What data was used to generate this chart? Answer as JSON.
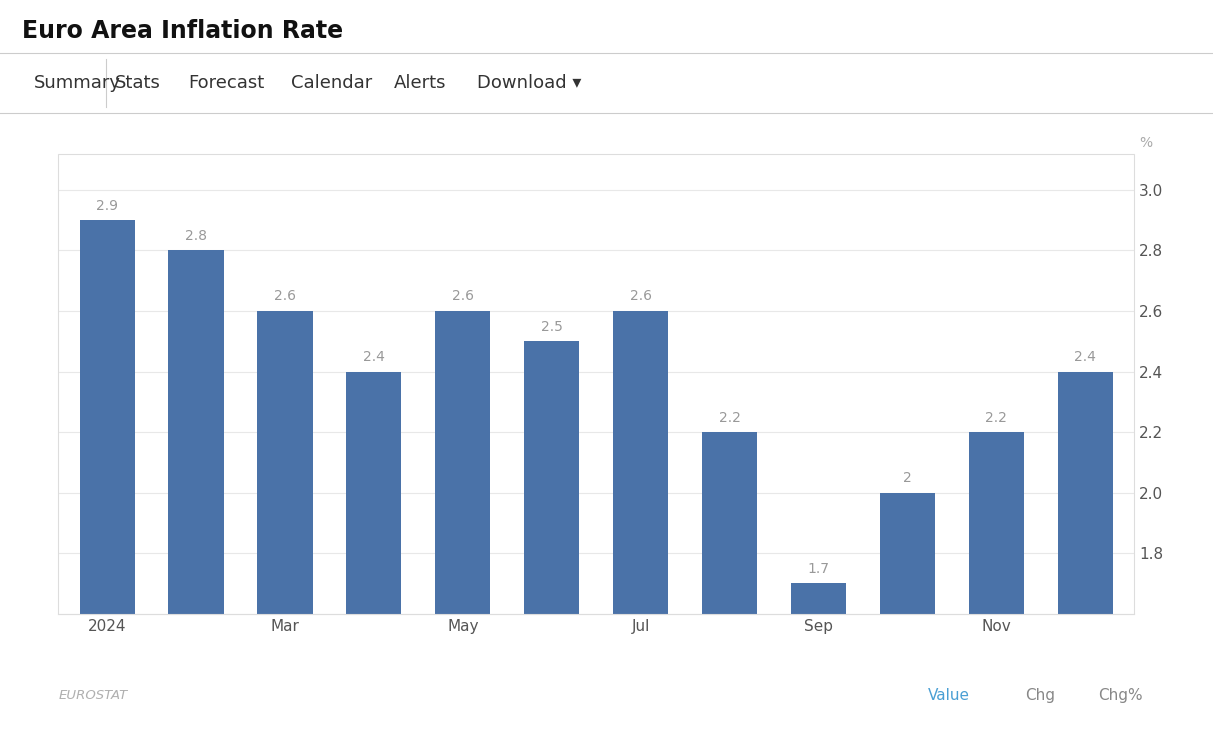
{
  "title": "Euro Area Inflation Rate",
  "nav_items": [
    "Summary",
    "Stats",
    "Forecast",
    "Calendar",
    "Alerts",
    "Download ▾"
  ],
  "x_labels": [
    "2024",
    "",
    "Mar",
    "",
    "May",
    "",
    "Jul",
    "",
    "Sep",
    "",
    "Nov",
    ""
  ],
  "values": [
    2.9,
    2.8,
    2.6,
    2.4,
    2.6,
    2.5,
    2.6,
    2.2,
    1.7,
    2.0,
    2.2,
    2.4
  ],
  "value_labels": [
    "2.9",
    "2.8",
    "2.6",
    "2.4",
    "2.6",
    "2.5",
    "2.6",
    "2.2",
    "1.7",
    "2",
    "2.2",
    "2.4"
  ],
  "bar_color": "#4a72a8",
  "ylim_min": 1.6,
  "ylim_max": 3.12,
  "yticks": [
    1.8,
    2.0,
    2.2,
    2.4,
    2.6,
    2.8,
    3.0
  ],
  "ylabel": "%",
  "header_bg": "#f0f0f0",
  "nav_bg": "#ffffff",
  "chart_bg": "#ffffff",
  "grid_color": "#e8e8e8",
  "footer_source": "EUROSTAT",
  "footer_value_label": "Value",
  "footer_chg_label": "Chg",
  "footer_chgpct_label": "Chg%",
  "footer_value_color": "#4a9fd4",
  "title_fontsize": 17,
  "nav_fontsize": 13,
  "tick_fontsize": 11,
  "value_label_fontsize": 10,
  "value_label_color": "#999999",
  "nav_separator_color": "#cccccc",
  "border_color": "#dddddd",
  "pct_label_color": "#aaaaaa"
}
